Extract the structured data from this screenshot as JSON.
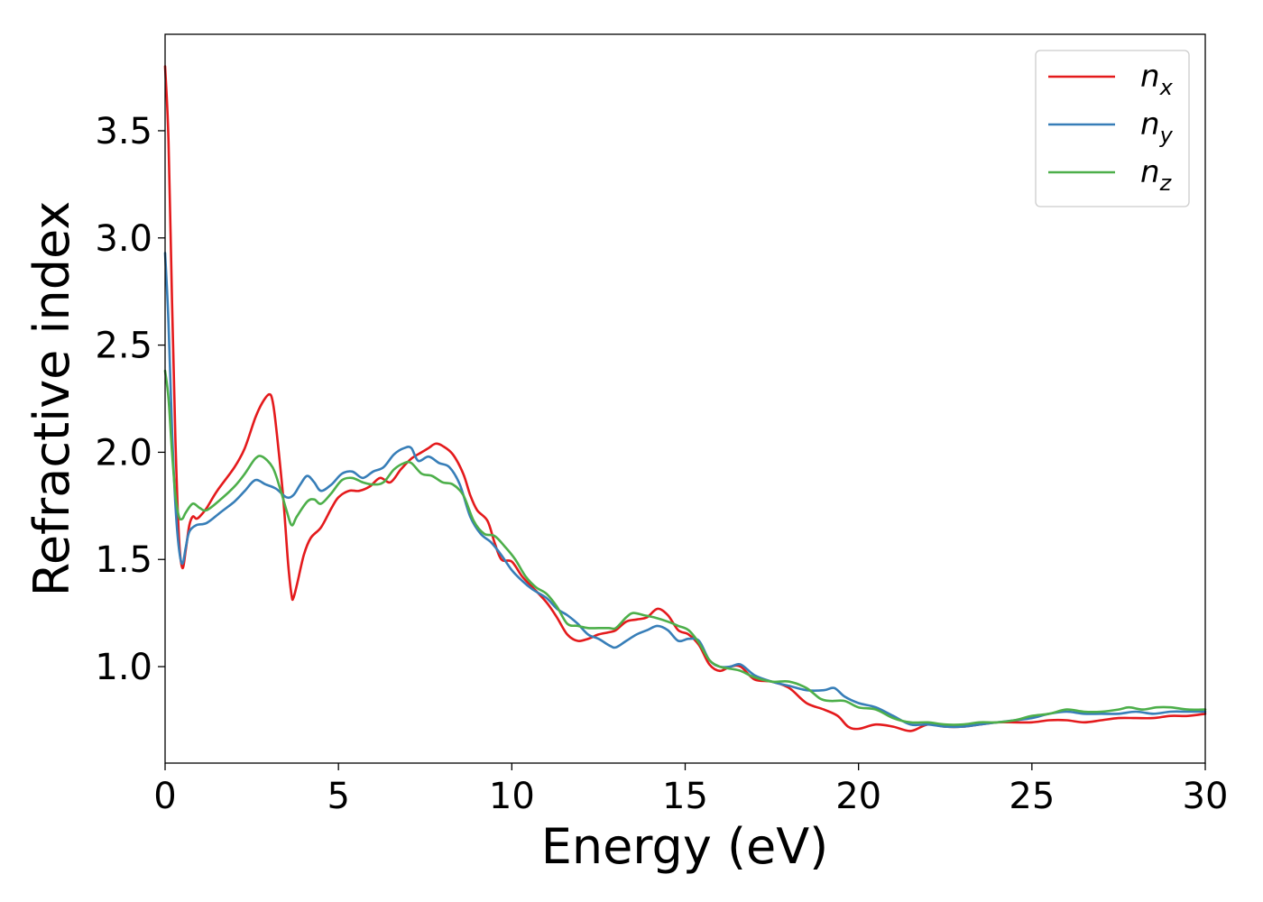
{
  "chart_data": {
    "type": "line",
    "xlabel": "Energy (eV)",
    "ylabel": "Refractive index",
    "xlim": [
      0,
      30
    ],
    "ylim": [
      0.55,
      3.95
    ],
    "xticks": [
      0,
      5,
      10,
      15,
      20,
      25,
      30
    ],
    "yticks": [
      1.0,
      1.5,
      2.0,
      2.5,
      3.0,
      3.5
    ],
    "xtick_labels": [
      "0",
      "5",
      "10",
      "15",
      "20",
      "25",
      "30"
    ],
    "ytick_labels": [
      "1.0",
      "1.5",
      "2.0",
      "2.5",
      "3.0",
      "3.5"
    ],
    "grid": false,
    "legend_position": "top-right",
    "series": [
      {
        "name": "n_x",
        "legend_base": "n",
        "legend_sub": "x",
        "color": "#e41a1c",
        "points": [
          [
            0,
            3.8
          ],
          [
            0.1,
            3.45
          ],
          [
            0.2,
            2.7
          ],
          [
            0.3,
            2.05
          ],
          [
            0.4,
            1.6
          ],
          [
            0.5,
            1.46
          ],
          [
            0.6,
            1.55
          ],
          [
            0.7,
            1.66
          ],
          [
            0.8,
            1.7
          ],
          [
            0.9,
            1.69
          ],
          [
            1.0,
            1.7
          ],
          [
            1.2,
            1.74
          ],
          [
            1.5,
            1.82
          ],
          [
            2.0,
            1.93
          ],
          [
            2.3,
            2.02
          ],
          [
            2.6,
            2.16
          ],
          [
            2.8,
            2.23
          ],
          [
            3.0,
            2.27
          ],
          [
            3.1,
            2.24
          ],
          [
            3.2,
            2.12
          ],
          [
            3.4,
            1.8
          ],
          [
            3.55,
            1.48
          ],
          [
            3.65,
            1.33
          ],
          [
            3.7,
            1.32
          ],
          [
            3.8,
            1.38
          ],
          [
            4.0,
            1.52
          ],
          [
            4.2,
            1.6
          ],
          [
            4.5,
            1.65
          ],
          [
            4.8,
            1.74
          ],
          [
            5.0,
            1.79
          ],
          [
            5.3,
            1.82
          ],
          [
            5.6,
            1.82
          ],
          [
            5.9,
            1.84
          ],
          [
            6.2,
            1.88
          ],
          [
            6.5,
            1.86
          ],
          [
            6.8,
            1.92
          ],
          [
            7.1,
            1.97
          ],
          [
            7.4,
            2.0
          ],
          [
            7.6,
            2.02
          ],
          [
            7.8,
            2.04
          ],
          [
            8.0,
            2.03
          ],
          [
            8.3,
            1.99
          ],
          [
            8.6,
            1.9
          ],
          [
            8.8,
            1.8
          ],
          [
            9.0,
            1.73
          ],
          [
            9.3,
            1.68
          ],
          [
            9.5,
            1.58
          ],
          [
            9.7,
            1.5
          ],
          [
            10.0,
            1.49
          ],
          [
            10.3,
            1.42
          ],
          [
            10.6,
            1.37
          ],
          [
            11.0,
            1.3
          ],
          [
            11.3,
            1.23
          ],
          [
            11.6,
            1.15
          ],
          [
            11.9,
            1.12
          ],
          [
            12.2,
            1.13
          ],
          [
            12.5,
            1.15
          ],
          [
            12.8,
            1.16
          ],
          [
            13.0,
            1.17
          ],
          [
            13.3,
            1.21
          ],
          [
            13.6,
            1.22
          ],
          [
            13.9,
            1.23
          ],
          [
            14.2,
            1.27
          ],
          [
            14.5,
            1.24
          ],
          [
            14.8,
            1.17
          ],
          [
            15.1,
            1.15
          ],
          [
            15.4,
            1.1
          ],
          [
            15.7,
            1.01
          ],
          [
            16.0,
            0.98
          ],
          [
            16.3,
            1.0
          ],
          [
            16.6,
            1.0
          ],
          [
            17.0,
            0.94
          ],
          [
            17.5,
            0.93
          ],
          [
            18.0,
            0.9
          ],
          [
            18.5,
            0.83
          ],
          [
            19.0,
            0.8
          ],
          [
            19.4,
            0.77
          ],
          [
            19.7,
            0.72
          ],
          [
            20.0,
            0.71
          ],
          [
            20.5,
            0.73
          ],
          [
            21.0,
            0.72
          ],
          [
            21.5,
            0.7
          ],
          [
            22.0,
            0.73
          ],
          [
            22.5,
            0.72
          ],
          [
            23.0,
            0.72
          ],
          [
            23.5,
            0.73
          ],
          [
            24.0,
            0.74
          ],
          [
            24.5,
            0.74
          ],
          [
            25.0,
            0.74
          ],
          [
            25.5,
            0.75
          ],
          [
            26.0,
            0.75
          ],
          [
            26.5,
            0.74
          ],
          [
            27.0,
            0.75
          ],
          [
            27.5,
            0.76
          ],
          [
            28.0,
            0.76
          ],
          [
            28.5,
            0.76
          ],
          [
            29.0,
            0.77
          ],
          [
            29.5,
            0.77
          ],
          [
            30.0,
            0.78
          ]
        ]
      },
      {
        "name": "n_y",
        "legend_base": "n",
        "legend_sub": "y",
        "color": "#377eb8",
        "points": [
          [
            0,
            2.93
          ],
          [
            0.1,
            2.6
          ],
          [
            0.2,
            2.1
          ],
          [
            0.3,
            1.75
          ],
          [
            0.4,
            1.55
          ],
          [
            0.5,
            1.48
          ],
          [
            0.6,
            1.56
          ],
          [
            0.7,
            1.63
          ],
          [
            0.9,
            1.66
          ],
          [
            1.2,
            1.67
          ],
          [
            1.6,
            1.72
          ],
          [
            2.0,
            1.77
          ],
          [
            2.3,
            1.82
          ],
          [
            2.6,
            1.87
          ],
          [
            2.9,
            1.85
          ],
          [
            3.2,
            1.83
          ],
          [
            3.5,
            1.79
          ],
          [
            3.7,
            1.8
          ],
          [
            3.9,
            1.85
          ],
          [
            4.1,
            1.89
          ],
          [
            4.3,
            1.86
          ],
          [
            4.5,
            1.82
          ],
          [
            4.8,
            1.85
          ],
          [
            5.1,
            1.9
          ],
          [
            5.4,
            1.91
          ],
          [
            5.7,
            1.88
          ],
          [
            6.0,
            1.91
          ],
          [
            6.3,
            1.93
          ],
          [
            6.6,
            1.99
          ],
          [
            6.9,
            2.02
          ],
          [
            7.1,
            2.02
          ],
          [
            7.3,
            1.96
          ],
          [
            7.6,
            1.98
          ],
          [
            7.9,
            1.95
          ],
          [
            8.2,
            1.93
          ],
          [
            8.5,
            1.85
          ],
          [
            8.8,
            1.7
          ],
          [
            9.1,
            1.62
          ],
          [
            9.4,
            1.58
          ],
          [
            9.7,
            1.52
          ],
          [
            10.0,
            1.45
          ],
          [
            10.3,
            1.4
          ],
          [
            10.6,
            1.36
          ],
          [
            11.0,
            1.32
          ],
          [
            11.3,
            1.27
          ],
          [
            11.6,
            1.24
          ],
          [
            11.9,
            1.2
          ],
          [
            12.2,
            1.15
          ],
          [
            12.5,
            1.13
          ],
          [
            12.8,
            1.1
          ],
          [
            13.0,
            1.09
          ],
          [
            13.3,
            1.12
          ],
          [
            13.6,
            1.15
          ],
          [
            13.9,
            1.17
          ],
          [
            14.2,
            1.19
          ],
          [
            14.5,
            1.17
          ],
          [
            14.8,
            1.12
          ],
          [
            15.1,
            1.13
          ],
          [
            15.4,
            1.12
          ],
          [
            15.7,
            1.03
          ],
          [
            16.0,
            1.0
          ],
          [
            16.3,
            1.0
          ],
          [
            16.6,
            1.01
          ],
          [
            17.0,
            0.96
          ],
          [
            17.5,
            0.93
          ],
          [
            18.0,
            0.91
          ],
          [
            18.5,
            0.89
          ],
          [
            19.0,
            0.89
          ],
          [
            19.3,
            0.9
          ],
          [
            19.6,
            0.86
          ],
          [
            20.0,
            0.83
          ],
          [
            20.5,
            0.81
          ],
          [
            21.0,
            0.77
          ],
          [
            21.5,
            0.73
          ],
          [
            22.0,
            0.73
          ],
          [
            22.5,
            0.72
          ],
          [
            23.0,
            0.72
          ],
          [
            23.5,
            0.73
          ],
          [
            24.0,
            0.74
          ],
          [
            24.5,
            0.75
          ],
          [
            25.0,
            0.76
          ],
          [
            25.5,
            0.78
          ],
          [
            26.0,
            0.79
          ],
          [
            26.5,
            0.78
          ],
          [
            27.0,
            0.78
          ],
          [
            27.5,
            0.78
          ],
          [
            28.0,
            0.79
          ],
          [
            28.5,
            0.78
          ],
          [
            29.0,
            0.79
          ],
          [
            29.5,
            0.79
          ],
          [
            30.0,
            0.79
          ]
        ]
      },
      {
        "name": "n_z",
        "legend_base": "n",
        "legend_sub": "z",
        "color": "#4daf4a",
        "points": [
          [
            0,
            2.38
          ],
          [
            0.1,
            2.25
          ],
          [
            0.2,
            2.0
          ],
          [
            0.3,
            1.8
          ],
          [
            0.4,
            1.7
          ],
          [
            0.5,
            1.69
          ],
          [
            0.6,
            1.72
          ],
          [
            0.8,
            1.76
          ],
          [
            1.0,
            1.74
          ],
          [
            1.2,
            1.73
          ],
          [
            1.6,
            1.78
          ],
          [
            2.0,
            1.84
          ],
          [
            2.3,
            1.9
          ],
          [
            2.6,
            1.97
          ],
          [
            2.8,
            1.98
          ],
          [
            3.1,
            1.93
          ],
          [
            3.3,
            1.84
          ],
          [
            3.5,
            1.73
          ],
          [
            3.65,
            1.66
          ],
          [
            3.8,
            1.7
          ],
          [
            4.1,
            1.77
          ],
          [
            4.3,
            1.78
          ],
          [
            4.5,
            1.76
          ],
          [
            4.8,
            1.81
          ],
          [
            5.1,
            1.87
          ],
          [
            5.4,
            1.88
          ],
          [
            5.7,
            1.86
          ],
          [
            6.0,
            1.85
          ],
          [
            6.3,
            1.86
          ],
          [
            6.6,
            1.92
          ],
          [
            6.9,
            1.95
          ],
          [
            7.1,
            1.95
          ],
          [
            7.4,
            1.9
          ],
          [
            7.7,
            1.89
          ],
          [
            8.0,
            1.86
          ],
          [
            8.3,
            1.85
          ],
          [
            8.6,
            1.8
          ],
          [
            8.9,
            1.68
          ],
          [
            9.2,
            1.62
          ],
          [
            9.5,
            1.61
          ],
          [
            9.8,
            1.56
          ],
          [
            10.1,
            1.5
          ],
          [
            10.4,
            1.42
          ],
          [
            10.7,
            1.37
          ],
          [
            11.0,
            1.34
          ],
          [
            11.3,
            1.28
          ],
          [
            11.6,
            1.2
          ],
          [
            11.9,
            1.19
          ],
          [
            12.2,
            1.18
          ],
          [
            12.5,
            1.18
          ],
          [
            12.8,
            1.18
          ],
          [
            13.0,
            1.18
          ],
          [
            13.3,
            1.23
          ],
          [
            13.5,
            1.25
          ],
          [
            13.8,
            1.24
          ],
          [
            14.1,
            1.23
          ],
          [
            14.5,
            1.21
          ],
          [
            14.8,
            1.19
          ],
          [
            15.1,
            1.17
          ],
          [
            15.4,
            1.11
          ],
          [
            15.7,
            1.03
          ],
          [
            16.0,
            1.0
          ],
          [
            16.3,
            0.99
          ],
          [
            16.6,
            0.98
          ],
          [
            17.0,
            0.95
          ],
          [
            17.5,
            0.93
          ],
          [
            18.0,
            0.93
          ],
          [
            18.5,
            0.9
          ],
          [
            18.9,
            0.85
          ],
          [
            19.2,
            0.84
          ],
          [
            19.6,
            0.84
          ],
          [
            20.0,
            0.81
          ],
          [
            20.5,
            0.8
          ],
          [
            21.0,
            0.76
          ],
          [
            21.5,
            0.74
          ],
          [
            22.0,
            0.74
          ],
          [
            22.5,
            0.73
          ],
          [
            23.0,
            0.73
          ],
          [
            23.5,
            0.74
          ],
          [
            24.0,
            0.74
          ],
          [
            24.5,
            0.75
          ],
          [
            25.0,
            0.77
          ],
          [
            25.5,
            0.78
          ],
          [
            26.0,
            0.8
          ],
          [
            26.5,
            0.79
          ],
          [
            27.0,
            0.79
          ],
          [
            27.5,
            0.8
          ],
          [
            27.8,
            0.81
          ],
          [
            28.2,
            0.8
          ],
          [
            28.6,
            0.81
          ],
          [
            29.0,
            0.81
          ],
          [
            29.5,
            0.8
          ],
          [
            30.0,
            0.8
          ]
        ]
      }
    ]
  }
}
